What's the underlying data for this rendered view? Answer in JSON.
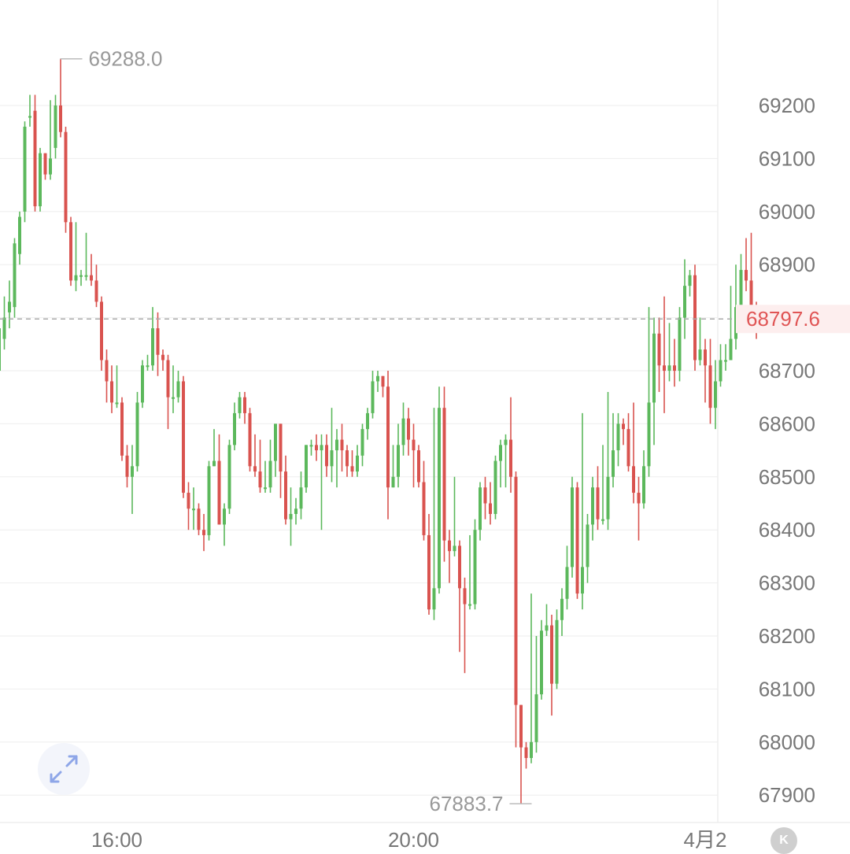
{
  "chart_data": {
    "type": "candlestick",
    "y_ticks": [
      69200,
      69100,
      69000,
      68900,
      68800,
      68700,
      68600,
      68500,
      68400,
      68300,
      68200,
      68100,
      68000,
      67900
    ],
    "y_tick_labels": [
      "69200",
      "69100",
      "69000",
      "68900",
      "68700",
      "68600",
      "68500",
      "68400",
      "68300",
      "68200",
      "68100",
      "68000",
      "67900"
    ],
    "x_ticks": [
      {
        "label": "16:00",
        "index": 23
      },
      {
        "label": "20:00",
        "index": 81
      },
      {
        "label": "4月2",
        "index": 138
      }
    ],
    "current_price": 68797.6,
    "current_price_label": "68797.6",
    "high_label": "69288.0",
    "low_label": "67883.7",
    "high_index": 11,
    "low_index": 105,
    "colors": {
      "up": "#5cb85c",
      "down": "#d9534f",
      "grid": "#eeeeee",
      "current": "#e05555"
    },
    "candles": [
      [
        68700,
        68780,
        68680,
        68800
      ],
      [
        68760,
        68800,
        68740,
        68840
      ],
      [
        68810,
        68830,
        68780,
        68870
      ],
      [
        68820,
        68940,
        68800,
        68950
      ],
      [
        68920,
        68990,
        68900,
        69000
      ],
      [
        69000,
        69160,
        68980,
        69170
      ],
      [
        69180,
        69180,
        69160,
        69220
      ],
      [
        69190,
        69010,
        69000,
        69220
      ],
      [
        69010,
        69110,
        69000,
        69120
      ],
      [
        69110,
        69070,
        69060,
        69110
      ],
      [
        69070,
        69100,
        69060,
        69210
      ],
      [
        69120,
        69200,
        69100,
        69220
      ],
      [
        69200,
        69150,
        69140,
        69288
      ],
      [
        69150,
        68980,
        68960,
        69160
      ],
      [
        68980,
        68870,
        68860,
        68990
      ],
      [
        68870,
        68880,
        68850,
        68980
      ],
      [
        68880,
        68880,
        68860,
        68890
      ],
      [
        68880,
        68880,
        68870,
        68960
      ],
      [
        68880,
        68870,
        68860,
        68920
      ],
      [
        68870,
        68830,
        68820,
        68900
      ],
      [
        68830,
        68720,
        68700,
        68840
      ],
      [
        68720,
        68680,
        68640,
        68740
      ],
      [
        68680,
        68640,
        68620,
        68710
      ],
      [
        68640,
        68640,
        68630,
        68710
      ],
      [
        68640,
        68540,
        68530,
        68650
      ],
      [
        68540,
        68500,
        68480,
        68560
      ],
      [
        68500,
        68520,
        68430,
        68560
      ],
      [
        68520,
        68640,
        68510,
        68660
      ],
      [
        68640,
        68710,
        68630,
        68720
      ],
      [
        68710,
        68710,
        68700,
        68730
      ],
      [
        68710,
        68780,
        68700,
        68820
      ],
      [
        68780,
        68730,
        68690,
        68810
      ],
      [
        68730,
        68720,
        68700,
        68740
      ],
      [
        68720,
        68650,
        68590,
        68730
      ],
      [
        68650,
        68650,
        68620,
        68710
      ],
      [
        68650,
        68680,
        68640,
        68700
      ],
      [
        68680,
        68470,
        68460,
        68690
      ],
      [
        68470,
        68440,
        68400,
        68490
      ],
      [
        68440,
        68440,
        68400,
        68480
      ],
      [
        68440,
        68400,
        68390,
        68450
      ],
      [
        68400,
        68390,
        68360,
        68430
      ],
      [
        68390,
        68520,
        68380,
        68530
      ],
      [
        68520,
        68530,
        68520,
        68590
      ],
      [
        68530,
        68410,
        68410,
        68580
      ],
      [
        68410,
        68440,
        68370,
        68450
      ],
      [
        68440,
        68560,
        68430,
        68570
      ],
      [
        68560,
        68620,
        68550,
        68640
      ],
      [
        68620,
        68650,
        68610,
        68660
      ],
      [
        68650,
        68620,
        68600,
        68660
      ],
      [
        68620,
        68520,
        68510,
        68630
      ],
      [
        68520,
        68510,
        68500,
        68580
      ],
      [
        68510,
        68480,
        68470,
        68570
      ],
      [
        68480,
        68480,
        68470,
        68530
      ],
      [
        68480,
        68530,
        68470,
        68570
      ],
      [
        68530,
        68600,
        68500,
        68600
      ],
      [
        68600,
        68510,
        68460,
        68600
      ],
      [
        68510,
        68420,
        68410,
        68540
      ],
      [
        68420,
        68430,
        68370,
        68480
      ],
      [
        68430,
        68440,
        68410,
        68460
      ],
      [
        68440,
        68480,
        68420,
        68510
      ],
      [
        68480,
        68560,
        68470,
        68560
      ],
      [
        68560,
        68560,
        68540,
        68570
      ],
      [
        68560,
        68550,
        68530,
        68580
      ],
      [
        68550,
        68560,
        68400,
        68580
      ],
      [
        68560,
        68520,
        68500,
        68580
      ],
      [
        68520,
        68550,
        68490,
        68630
      ],
      [
        68550,
        68570,
        68480,
        68590
      ],
      [
        68570,
        68550,
        68510,
        68600
      ],
      [
        68550,
        68520,
        68500,
        68560
      ],
      [
        68520,
        68510,
        68500,
        68550
      ],
      [
        68510,
        68540,
        68500,
        68560
      ],
      [
        68540,
        68590,
        68520,
        68600
      ],
      [
        68590,
        68620,
        68570,
        68630
      ],
      [
        68620,
        68680,
        68610,
        68700
      ],
      [
        68680,
        68690,
        68660,
        68700
      ],
      [
        68690,
        68670,
        68650,
        68690
      ],
      [
        68670,
        68480,
        68420,
        68700
      ],
      [
        68480,
        68500,
        68480,
        68560
      ],
      [
        68500,
        68560,
        68480,
        68600
      ],
      [
        68560,
        68610,
        68540,
        68640
      ],
      [
        68610,
        68570,
        68540,
        68630
      ],
      [
        68570,
        68550,
        68480,
        68600
      ],
      [
        68550,
        68490,
        68480,
        68560
      ],
      [
        68490,
        68390,
        68380,
        68530
      ],
      [
        68390,
        68250,
        68240,
        68430
      ],
      [
        68250,
        68290,
        68230,
        68630
      ],
      [
        68290,
        68630,
        68280,
        68670
      ],
      [
        68630,
        68380,
        68340,
        68670
      ],
      [
        68380,
        68360,
        68300,
        68400
      ],
      [
        68360,
        68370,
        68350,
        68500
      ],
      [
        68370,
        68290,
        68170,
        68380
      ],
      [
        68290,
        68260,
        68130,
        68310
      ],
      [
        68260,
        68260,
        68250,
        68390
      ],
      [
        68260,
        68400,
        68250,
        68420
      ],
      [
        68400,
        68480,
        68380,
        68490
      ],
      [
        68480,
        68450,
        68420,
        68500
      ],
      [
        68450,
        68430,
        68410,
        68490
      ],
      [
        68430,
        68530,
        68420,
        68540
      ],
      [
        68530,
        68560,
        68480,
        68570
      ],
      [
        68560,
        68570,
        68480,
        68580
      ],
      [
        68570,
        68500,
        68470,
        68650
      ],
      [
        68500,
        68070,
        67990,
        68510
      ],
      [
        68070,
        67990,
        67883.7,
        68070
      ],
      [
        67990,
        67970,
        67950,
        68000
      ],
      [
        67970,
        68000,
        67960,
        68280
      ],
      [
        68000,
        68090,
        67980,
        68200
      ],
      [
        68090,
        68210,
        68080,
        68230
      ],
      [
        68210,
        68220,
        68200,
        68260
      ],
      [
        68220,
        68110,
        68050,
        68240
      ],
      [
        68110,
        68230,
        68100,
        68250
      ],
      [
        68230,
        68270,
        68200,
        68290
      ],
      [
        68270,
        68330,
        68250,
        68370
      ],
      [
        68330,
        68480,
        68310,
        68500
      ],
      [
        68480,
        68280,
        68270,
        68490
      ],
      [
        68280,
        68330,
        68250,
        68620
      ],
      [
        68330,
        68410,
        68300,
        68430
      ],
      [
        68410,
        68480,
        68380,
        68500
      ],
      [
        68480,
        68420,
        68400,
        68520
      ],
      [
        68420,
        68420,
        68410,
        68560
      ],
      [
        68420,
        68500,
        68400,
        68660
      ],
      [
        68500,
        68550,
        68480,
        68620
      ],
      [
        68550,
        68600,
        68520,
        68620
      ],
      [
        68600,
        68590,
        68560,
        68610
      ],
      [
        68590,
        68520,
        68510,
        68620
      ],
      [
        68520,
        68470,
        68450,
        68640
      ],
      [
        68470,
        68450,
        68380,
        68500
      ],
      [
        68450,
        68520,
        68440,
        68550
      ],
      [
        68520,
        68640,
        68500,
        68820
      ],
      [
        68640,
        68770,
        68560,
        68800
      ],
      [
        68770,
        68710,
        68660,
        68800
      ],
      [
        68710,
        68700,
        68620,
        68840
      ],
      [
        68700,
        68710,
        68680,
        68790
      ],
      [
        68710,
        68700,
        68670,
        68760
      ],
      [
        68700,
        68800,
        68680,
        68820
      ],
      [
        68800,
        68860,
        68760,
        68910
      ],
      [
        68860,
        68880,
        68840,
        68890
      ],
      [
        68880,
        68720,
        68700,
        68900
      ],
      [
        68720,
        68740,
        68710,
        68800
      ],
      [
        68740,
        68710,
        68640,
        68760
      ],
      [
        68710,
        68630,
        68600,
        68760
      ],
      [
        68630,
        68680,
        68590,
        68720
      ],
      [
        68680,
        68720,
        68670,
        68750
      ],
      [
        68720,
        68720,
        68700,
        68750
      ],
      [
        68720,
        68760,
        68720,
        68860
      ],
      [
        68760,
        68820,
        68740,
        68900
      ],
      [
        68820,
        68890,
        68800,
        68920
      ],
      [
        68890,
        68870,
        68850,
        68950
      ],
      [
        68870,
        68810,
        68780,
        68960
      ],
      [
        68810,
        68780,
        68760,
        68830
      ]
    ]
  },
  "controls": {
    "k_label": "K",
    "expand_icon": "expand-arrows-icon"
  }
}
